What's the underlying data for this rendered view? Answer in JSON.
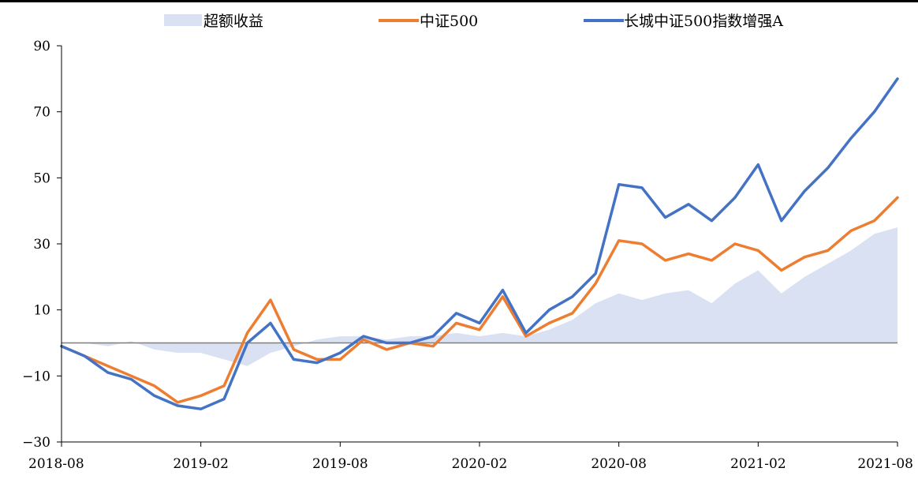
{
  "chart_data": {
    "type": "line",
    "title": "",
    "xlabel": "",
    "ylabel": "",
    "ylim": [
      -30,
      90
    ],
    "yticks": [
      -30,
      -10,
      10,
      30,
      50,
      70,
      90
    ],
    "xticks": [
      "2018-08",
      "2019-02",
      "2019-08",
      "2020-02",
      "2020-08",
      "2021-02",
      "2021-08"
    ],
    "x_range": [
      "2018-08",
      "2021-08"
    ],
    "grid": false,
    "legend_position": "top",
    "series": [
      {
        "name": "超额收益",
        "kind": "area",
        "color": "#d9e1f2",
        "points": [
          [
            "2018-08",
            0
          ],
          [
            "2018-09",
            0
          ],
          [
            "2018-10",
            -1
          ],
          [
            "2018-11",
            0.5
          ],
          [
            "2018-12",
            -2
          ],
          [
            "2019-01",
            -3
          ],
          [
            "2019-02",
            -3
          ],
          [
            "2019-03",
            -5
          ],
          [
            "2019-04",
            -7
          ],
          [
            "2019-05",
            -3
          ],
          [
            "2019-06",
            -1
          ],
          [
            "2019-07",
            1
          ],
          [
            "2019-08",
            2
          ],
          [
            "2019-09",
            2
          ],
          [
            "2019-10",
            1
          ],
          [
            "2019-11",
            2
          ],
          [
            "2019-12",
            2
          ],
          [
            "2020-01",
            3
          ],
          [
            "2020-02",
            2
          ],
          [
            "2020-03",
            3
          ],
          [
            "2020-04",
            2
          ],
          [
            "2020-05",
            4
          ],
          [
            "2020-06",
            7
          ],
          [
            "2020-07",
            12
          ],
          [
            "2020-08",
            15
          ],
          [
            "2020-09",
            13
          ],
          [
            "2020-10",
            15
          ],
          [
            "2020-11",
            16
          ],
          [
            "2020-12",
            12
          ],
          [
            "2021-01",
            18
          ],
          [
            "2021-02",
            22
          ],
          [
            "2021-03",
            15
          ],
          [
            "2021-04",
            20
          ],
          [
            "2021-05",
            24
          ],
          [
            "2021-06",
            28
          ],
          [
            "2021-07",
            33
          ],
          [
            "2021-08",
            35
          ]
        ]
      },
      {
        "name": "中证500",
        "kind": "line",
        "color": "#ed7d31",
        "points": [
          [
            "2018-08",
            -1
          ],
          [
            "2018-09",
            -4
          ],
          [
            "2018-10",
            -7
          ],
          [
            "2018-11",
            -10
          ],
          [
            "2018-12",
            -13
          ],
          [
            "2019-01",
            -18
          ],
          [
            "2019-02",
            -16
          ],
          [
            "2019-03",
            -13
          ],
          [
            "2019-04",
            3
          ],
          [
            "2019-05",
            13
          ],
          [
            "2019-06",
            -2
          ],
          [
            "2019-07",
            -5
          ],
          [
            "2019-08",
            -5
          ],
          [
            "2019-09",
            1
          ],
          [
            "2019-10",
            -2
          ],
          [
            "2019-11",
            0
          ],
          [
            "2019-12",
            -1
          ],
          [
            "2020-01",
            6
          ],
          [
            "2020-02",
            4
          ],
          [
            "2020-03",
            14
          ],
          [
            "2020-04",
            2
          ],
          [
            "2020-05",
            6
          ],
          [
            "2020-06",
            9
          ],
          [
            "2020-07",
            18
          ],
          [
            "2020-08",
            31
          ],
          [
            "2020-09",
            30
          ],
          [
            "2020-10",
            25
          ],
          [
            "2020-11",
            27
          ],
          [
            "2020-12",
            25
          ],
          [
            "2021-01",
            30
          ],
          [
            "2021-02",
            28
          ],
          [
            "2021-03",
            22
          ],
          [
            "2021-04",
            26
          ],
          [
            "2021-05",
            28
          ],
          [
            "2021-06",
            34
          ],
          [
            "2021-07",
            37
          ],
          [
            "2021-08",
            44
          ]
        ]
      },
      {
        "name": "长城中证500指数增强A",
        "kind": "line",
        "color": "#4472c4",
        "points": [
          [
            "2018-08",
            -1
          ],
          [
            "2018-09",
            -4
          ],
          [
            "2018-10",
            -9
          ],
          [
            "2018-11",
            -11
          ],
          [
            "2018-12",
            -16
          ],
          [
            "2019-01",
            -19
          ],
          [
            "2019-02",
            -20
          ],
          [
            "2019-03",
            -17
          ],
          [
            "2019-04",
            0
          ],
          [
            "2019-05",
            6
          ],
          [
            "2019-06",
            -5
          ],
          [
            "2019-07",
            -6
          ],
          [
            "2019-08",
            -3
          ],
          [
            "2019-09",
            2
          ],
          [
            "2019-10",
            0
          ],
          [
            "2019-11",
            0
          ],
          [
            "2019-12",
            2
          ],
          [
            "2020-01",
            9
          ],
          [
            "2020-02",
            6
          ],
          [
            "2020-03",
            16
          ],
          [
            "2020-04",
            3
          ],
          [
            "2020-05",
            10
          ],
          [
            "2020-06",
            14
          ],
          [
            "2020-07",
            21
          ],
          [
            "2020-08",
            48
          ],
          [
            "2020-09",
            47
          ],
          [
            "2020-10",
            38
          ],
          [
            "2020-11",
            42
          ],
          [
            "2020-12",
            37
          ],
          [
            "2021-01",
            44
          ],
          [
            "2021-02",
            54
          ],
          [
            "2021-03",
            37
          ],
          [
            "2021-04",
            46
          ],
          [
            "2021-05",
            53
          ],
          [
            "2021-06",
            62
          ],
          [
            "2021-07",
            70
          ],
          [
            "2021-08",
            80
          ]
        ]
      }
    ]
  }
}
